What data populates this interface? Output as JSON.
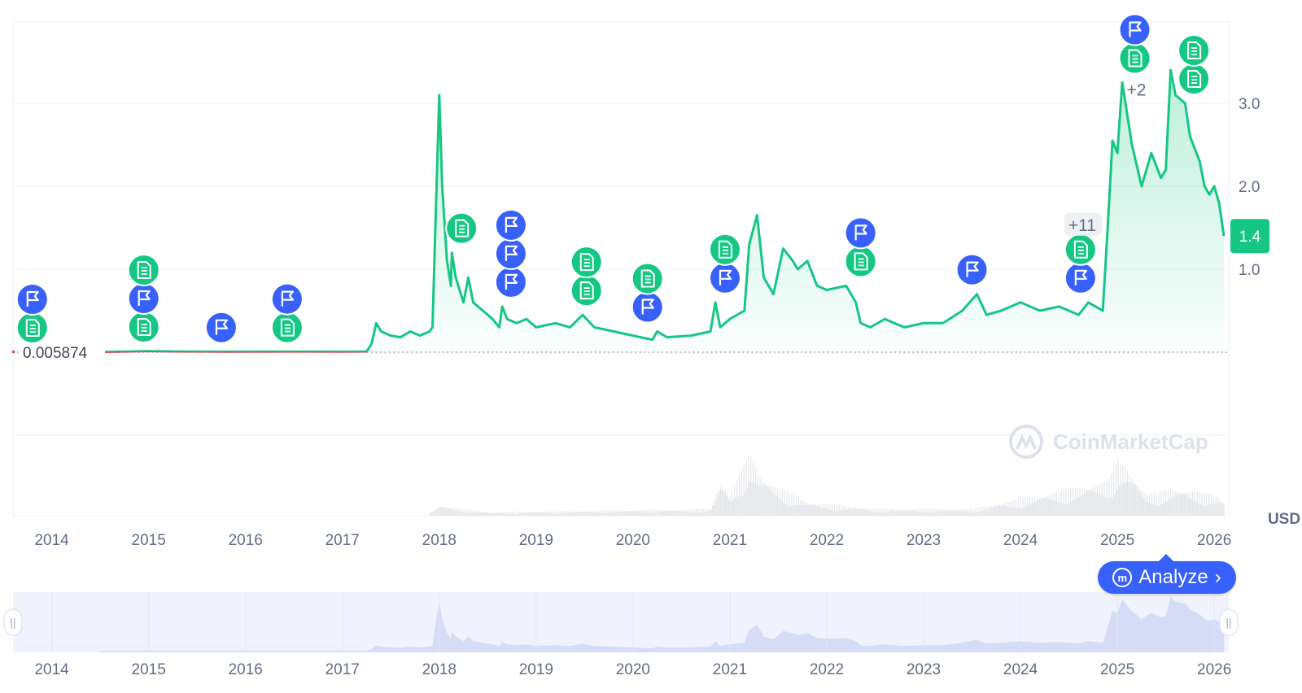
{
  "chart_data": {
    "type": "area",
    "y_unit_label": "USD",
    "y_ticks": [
      1.0,
      2.0,
      3.0
    ],
    "y_range": [
      -1,
      4
    ],
    "x_ticks": [
      "2014",
      "2015",
      "2016",
      "2017",
      "2018",
      "2019",
      "2020",
      "2021",
      "2022",
      "2023",
      "2024",
      "2025",
      "2026"
    ],
    "baseline_label": "0.005874",
    "current_price_label": "1.4",
    "x_range": [
      2013.6,
      2026.15
    ],
    "price_series": [
      [
        2014.5,
        0.0
      ],
      [
        2014.8,
        0.005
      ],
      [
        2015.0,
        0.01
      ],
      [
        2015.3,
        0.005
      ],
      [
        2015.8,
        0.003
      ],
      [
        2016.5,
        0.004
      ],
      [
        2017.0,
        0.003
      ],
      [
        2017.25,
        0.005
      ],
      [
        2017.3,
        0.1
      ],
      [
        2017.35,
        0.35
      ],
      [
        2017.4,
        0.25
      ],
      [
        2017.5,
        0.2
      ],
      [
        2017.6,
        0.18
      ],
      [
        2017.7,
        0.25
      ],
      [
        2017.8,
        0.2
      ],
      [
        2017.9,
        0.25
      ],
      [
        2017.93,
        0.3
      ],
      [
        2017.96,
        1.5
      ],
      [
        2018.0,
        3.1
      ],
      [
        2018.03,
        2.0
      ],
      [
        2018.08,
        1.1
      ],
      [
        2018.12,
        0.8
      ],
      [
        2018.13,
        1.2
      ],
      [
        2018.17,
        0.9
      ],
      [
        2018.25,
        0.6
      ],
      [
        2018.3,
        0.9
      ],
      [
        2018.35,
        0.6
      ],
      [
        2018.45,
        0.5
      ],
      [
        2018.55,
        0.4
      ],
      [
        2018.62,
        0.3
      ],
      [
        2018.65,
        0.55
      ],
      [
        2018.7,
        0.4
      ],
      [
        2018.8,
        0.35
      ],
      [
        2018.9,
        0.4
      ],
      [
        2019.0,
        0.3
      ],
      [
        2019.2,
        0.35
      ],
      [
        2019.35,
        0.3
      ],
      [
        2019.48,
        0.45
      ],
      [
        2019.6,
        0.3
      ],
      [
        2019.8,
        0.25
      ],
      [
        2020.0,
        0.2
      ],
      [
        2020.2,
        0.15
      ],
      [
        2020.25,
        0.25
      ],
      [
        2020.35,
        0.18
      ],
      [
        2020.6,
        0.2
      ],
      [
        2020.8,
        0.25
      ],
      [
        2020.85,
        0.6
      ],
      [
        2020.9,
        0.3
      ],
      [
        2021.0,
        0.4
      ],
      [
        2021.15,
        0.5
      ],
      [
        2021.2,
        1.3
      ],
      [
        2021.28,
        1.65
      ],
      [
        2021.35,
        0.9
      ],
      [
        2021.45,
        0.7
      ],
      [
        2021.55,
        1.25
      ],
      [
        2021.65,
        1.1
      ],
      [
        2021.7,
        1.0
      ],
      [
        2021.8,
        1.1
      ],
      [
        2021.9,
        0.8
      ],
      [
        2022.0,
        0.75
      ],
      [
        2022.2,
        0.8
      ],
      [
        2022.3,
        0.6
      ],
      [
        2022.35,
        0.35
      ],
      [
        2022.45,
        0.3
      ],
      [
        2022.6,
        0.4
      ],
      [
        2022.8,
        0.3
      ],
      [
        2023.0,
        0.35
      ],
      [
        2023.2,
        0.35
      ],
      [
        2023.4,
        0.5
      ],
      [
        2023.55,
        0.7
      ],
      [
        2023.65,
        0.45
      ],
      [
        2023.8,
        0.5
      ],
      [
        2024.0,
        0.6
      ],
      [
        2024.2,
        0.5
      ],
      [
        2024.4,
        0.55
      ],
      [
        2024.5,
        0.5
      ],
      [
        2024.6,
        0.45
      ],
      [
        2024.7,
        0.6
      ],
      [
        2024.85,
        0.5
      ],
      [
        2024.9,
        1.5
      ],
      [
        2024.95,
        2.55
      ],
      [
        2025.0,
        2.4
      ],
      [
        2025.05,
        3.25
      ],
      [
        2025.15,
        2.5
      ],
      [
        2025.25,
        2.0
      ],
      [
        2025.35,
        2.4
      ],
      [
        2025.45,
        2.1
      ],
      [
        2025.5,
        2.2
      ],
      [
        2025.55,
        3.4
      ],
      [
        2025.6,
        3.1
      ],
      [
        2025.7,
        3.0
      ],
      [
        2025.75,
        2.6
      ],
      [
        2025.85,
        2.3
      ],
      [
        2025.9,
        2.0
      ],
      [
        2025.95,
        1.9
      ],
      [
        2026.0,
        2.0
      ],
      [
        2026.05,
        1.8
      ],
      [
        2026.1,
        1.4
      ]
    ],
    "volume_series": [
      [
        2014.5,
        0.01
      ],
      [
        2017.9,
        0.05
      ],
      [
        2018.0,
        0.15
      ],
      [
        2018.5,
        0.05
      ],
      [
        2020.8,
        0.1
      ],
      [
        2020.9,
        0.5
      ],
      [
        2021.0,
        0.3
      ],
      [
        2021.2,
        0.9
      ],
      [
        2021.3,
        0.6
      ],
      [
        2021.5,
        0.4
      ],
      [
        2021.8,
        0.2
      ],
      [
        2022.5,
        0.1
      ],
      [
        2023.5,
        0.1
      ],
      [
        2024.9,
        0.5
      ],
      [
        2025.0,
        0.8
      ],
      [
        2025.1,
        0.7
      ],
      [
        2025.3,
        0.3
      ],
      [
        2025.6,
        0.4
      ],
      [
        2026.0,
        0.3
      ],
      [
        2026.1,
        0.2
      ]
    ],
    "event_markers": [
      {
        "year": 2013.8,
        "icons": [
          "document",
          "flag"
        ]
      },
      {
        "year": 2014.95,
        "icons": [
          "document",
          "flag",
          "document"
        ]
      },
      {
        "year": 2015.75,
        "icons": [
          "flag"
        ]
      },
      {
        "year": 2016.43,
        "icons": [
          "document",
          "flag"
        ]
      },
      {
        "year": 2018.23,
        "icons": [
          "document"
        ]
      },
      {
        "year": 2018.74,
        "icons": [
          "flag",
          "flag",
          "flag"
        ]
      },
      {
        "year": 2019.52,
        "icons": [
          "document",
          "document"
        ]
      },
      {
        "year": 2020.15,
        "icons": [
          "flag",
          "document"
        ]
      },
      {
        "year": 2020.95,
        "icons": [
          "flag",
          "document"
        ]
      },
      {
        "year": 2022.35,
        "icons": [
          "document",
          "flag"
        ]
      },
      {
        "year": 2023.5,
        "icons": [
          "flag"
        ]
      },
      {
        "year": 2024.62,
        "icons": [
          "flag",
          "document"
        ],
        "count_label": "+11"
      },
      {
        "year": 2025.18,
        "icons": [
          "document",
          "flag"
        ],
        "count_label": "+2"
      },
      {
        "year": 2025.79,
        "icons": [
          "document",
          "document"
        ]
      }
    ]
  },
  "watermark": "CoinMarketCap",
  "analyze_button": {
    "label": "Analyze",
    "arrow": "›",
    "icon": "cmc-logo-icon"
  },
  "navigator": {
    "x_ticks": [
      "2014",
      "2015",
      "2016",
      "2017",
      "2018",
      "2019",
      "2020",
      "2021",
      "2022",
      "2023",
      "2024",
      "2025",
      "2026"
    ],
    "handle_glyph": "||"
  },
  "colors": {
    "line": "#16c784",
    "flag": "#3861fb",
    "document": "#16c784",
    "early_line": "#ea3943",
    "navigator_fill": "#e6e9fc",
    "navigator_bg": "#f0f2fd"
  }
}
